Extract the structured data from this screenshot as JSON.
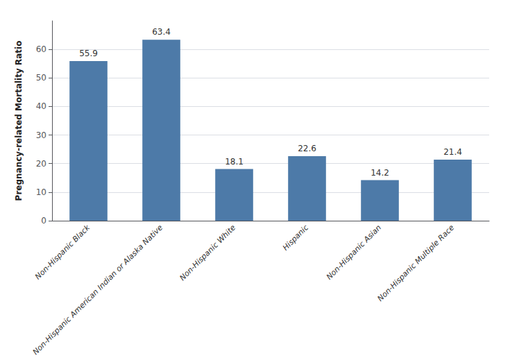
{
  "chart_data": {
    "type": "bar",
    "ylabel": "Pregnancy-related Mortality Ratio",
    "categories": [
      "Non-Hispanic Black",
      "Non-Hispanic American Indian or Alaska Native",
      "Non-Hispanic White",
      "Hispanic",
      "Non-Hispanic Asian",
      "Non-Hispanic Multiple Race"
    ],
    "values": [
      55.9,
      63.4,
      18.1,
      22.6,
      14.2,
      21.4
    ],
    "color": "#4d7aa8",
    "ylim": [
      0,
      70
    ],
    "yticks": [
      0,
      10,
      20,
      30,
      40,
      50,
      60
    ],
    "grid": true,
    "data_labels": true
  }
}
